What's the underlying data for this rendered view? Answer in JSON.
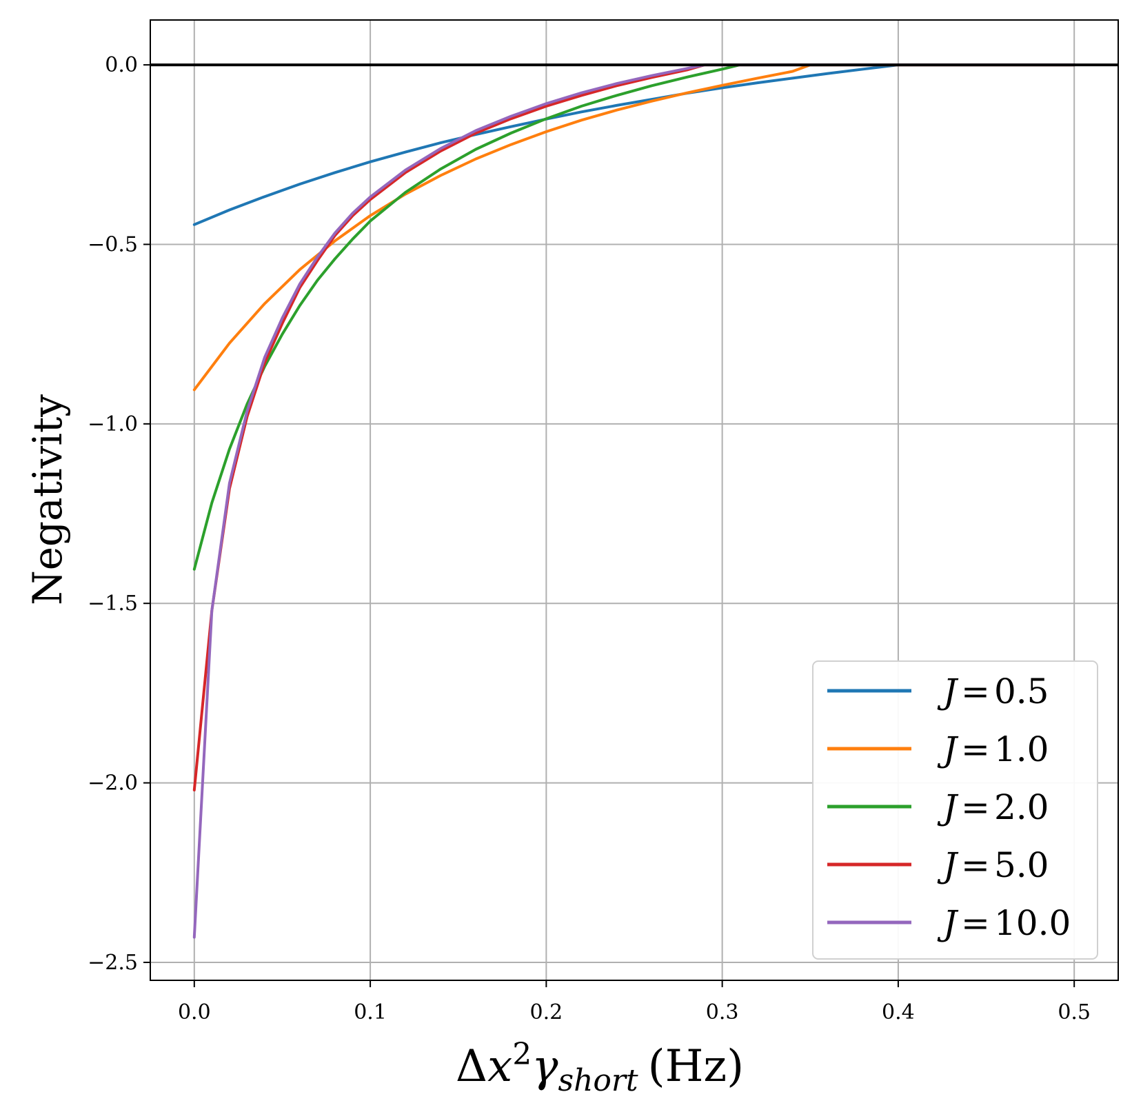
{
  "chart_data": {
    "type": "line",
    "title": "",
    "xlabel": {
      "delta": "Δ",
      "x": "x",
      "sup": "2",
      "gamma": "γ",
      "sub": "short",
      "unit": "(Hz)"
    },
    "ylabel": "Negativity",
    "xlim": [
      -0.025,
      0.525
    ],
    "ylim": [
      -2.55,
      0.125
    ],
    "xticks": [
      0.0,
      0.1,
      0.2,
      0.3,
      0.4,
      0.5
    ],
    "xtick_labels": [
      "0.0",
      "0.1",
      "0.2",
      "0.3",
      "0.4",
      "0.5"
    ],
    "yticks": [
      0.0,
      -0.5,
      -1.0,
      -1.5,
      -2.0,
      -2.5
    ],
    "ytick_labels": [
      "0.0",
      "−0.5",
      "−1.0",
      "−1.5",
      "−2.0",
      "−2.5"
    ],
    "grid": true,
    "reference_line": {
      "y": 0.0,
      "color": "#000000"
    },
    "legend": {
      "position": "bottom-right",
      "prefix": "J",
      "equals": "=",
      "labels": [
        "0.5",
        "1.0",
        "2.0",
        "5.0",
        "10.0"
      ]
    },
    "series": [
      {
        "name": "J = 0.5",
        "color": "#1f77b4",
        "x": [
          0.0,
          0.02,
          0.04,
          0.06,
          0.08,
          0.1,
          0.12,
          0.14,
          0.16,
          0.18,
          0.2,
          0.22,
          0.24,
          0.26,
          0.28,
          0.3,
          0.32,
          0.34,
          0.36,
          0.38,
          0.4,
          0.44,
          0.48,
          0.5
        ],
        "y": [
          -0.445,
          -0.404,
          -0.367,
          -0.332,
          -0.3,
          -0.27,
          -0.243,
          -0.217,
          -0.194,
          -0.172,
          -0.151,
          -0.131,
          -0.113,
          -0.096,
          -0.079,
          -0.064,
          -0.05,
          -0.037,
          -0.024,
          -0.012,
          0.0,
          0.0,
          0.0,
          0.0
        ]
      },
      {
        "name": "J = 1.0",
        "color": "#ff7f0e",
        "x": [
          0.0,
          0.02,
          0.04,
          0.06,
          0.08,
          0.1,
          0.12,
          0.14,
          0.16,
          0.18,
          0.2,
          0.22,
          0.24,
          0.26,
          0.28,
          0.3,
          0.32,
          0.34,
          0.35,
          0.4,
          0.44,
          0.48,
          0.5
        ],
        "y": [
          -0.905,
          -0.775,
          -0.665,
          -0.57,
          -0.49,
          -0.42,
          -0.36,
          -0.308,
          -0.262,
          -0.222,
          -0.186,
          -0.154,
          -0.126,
          -0.101,
          -0.078,
          -0.057,
          -0.037,
          -0.018,
          0.0,
          0.0,
          0.0,
          0.0,
          0.0
        ]
      },
      {
        "name": "J = 2.0",
        "color": "#2ca02c",
        "x": [
          0.0,
          0.01,
          0.02,
          0.03,
          0.04,
          0.05,
          0.06,
          0.07,
          0.08,
          0.09,
          0.1,
          0.12,
          0.14,
          0.16,
          0.18,
          0.2,
          0.22,
          0.24,
          0.26,
          0.28,
          0.3,
          0.31,
          0.35,
          0.4,
          0.45,
          0.5
        ],
        "y": [
          -1.405,
          -1.22,
          -1.07,
          -0.945,
          -0.84,
          -0.75,
          -0.67,
          -0.6,
          -0.54,
          -0.485,
          -0.435,
          -0.355,
          -0.29,
          -0.235,
          -0.19,
          -0.15,
          -0.115,
          -0.085,
          -0.058,
          -0.034,
          -0.012,
          0.0,
          0.0,
          0.0,
          0.0,
          0.0
        ]
      },
      {
        "name": "J = 5.0",
        "color": "#d62728",
        "x": [
          0.0,
          0.01,
          0.02,
          0.03,
          0.04,
          0.05,
          0.06,
          0.07,
          0.08,
          0.09,
          0.1,
          0.12,
          0.14,
          0.16,
          0.18,
          0.2,
          0.22,
          0.24,
          0.26,
          0.28,
          0.29,
          0.35,
          0.4,
          0.45,
          0.5
        ],
        "y": [
          -2.02,
          -1.52,
          -1.18,
          -0.98,
          -0.83,
          -0.72,
          -0.62,
          -0.545,
          -0.475,
          -0.42,
          -0.375,
          -0.3,
          -0.24,
          -0.19,
          -0.15,
          -0.115,
          -0.085,
          -0.058,
          -0.035,
          -0.014,
          0.0,
          0.0,
          0.0,
          0.0,
          0.0
        ]
      },
      {
        "name": "J = 10.0",
        "color": "#9467bd",
        "x": [
          0.0,
          0.01,
          0.02,
          0.03,
          0.04,
          0.05,
          0.06,
          0.07,
          0.08,
          0.09,
          0.1,
          0.12,
          0.14,
          0.16,
          0.18,
          0.2,
          0.22,
          0.24,
          0.26,
          0.28,
          0.29,
          0.35,
          0.4,
          0.45,
          0.5
        ],
        "y": [
          -2.43,
          -1.52,
          -1.165,
          -0.965,
          -0.815,
          -0.705,
          -0.61,
          -0.535,
          -0.468,
          -0.413,
          -0.368,
          -0.293,
          -0.233,
          -0.183,
          -0.143,
          -0.108,
          -0.078,
          -0.052,
          -0.03,
          -0.01,
          0.0,
          0.0,
          0.0,
          0.0,
          0.0
        ]
      }
    ]
  }
}
